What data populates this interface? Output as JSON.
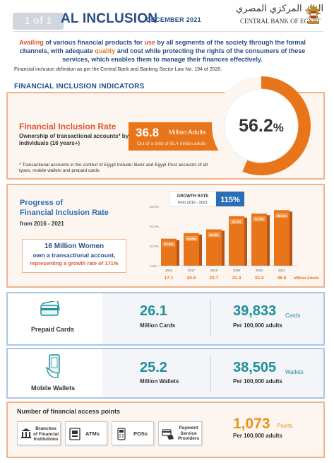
{
  "header": {
    "page_badge": "1 of 1",
    "title": "AL INCLUSION",
    "date": "DECEMBER 2021",
    "cbe_arabic": "البنك المركزي المصري",
    "cbe_english": "CENTRAL BANK OF EGYPT",
    "seal_icon": "eagle-seal-icon"
  },
  "definition": {
    "part1": "Availing",
    "part2": " of various financial products for ",
    "part3": "use",
    "part4": " by all segments of the society through the formal channels, with adequate ",
    "part5": "quality",
    "part6": " and cost while protecting the rights of the consumers of these services, which enables them to manage their finances effectively.",
    "note": "Financial inclusion definition as per the Central Bank and Banking Sector Law No. 194 of 2020."
  },
  "section_title": "FINANCIAL INCLUSION INDICATORS",
  "inclusion_rate": {
    "title": "Financial Inclusion Rate",
    "subtitle": "Ownership of transactional accounts* by individuals (16 years+)",
    "adults_value": "36.8",
    "adults_unit": "Million Adults",
    "adults_total": "Out of a total of 65.4 million adults",
    "footnote": "* Transactional accounts in the context of Egypt include: Bank and Egypt Post accounts of all types, mobile wallets and prepaid cards",
    "rate_value": "56.2",
    "rate_unit": "%",
    "rate_fraction": 0.562,
    "accent_color": "#e8751a"
  },
  "progress": {
    "title_line1": "Progress of",
    "title_line2": "Financial Inclusion Rate",
    "range": "from 2016 - 2021",
    "women_l1": "16 Million Women",
    "women_l2": "own a transactional account,",
    "women_l3": "representing a growth rate of 171%"
  },
  "chart_data": {
    "type": "bar",
    "growth_label": "GROWTH RATE",
    "growth_range": "from 2016 - 2021",
    "growth_value": "115%",
    "categories": [
      "2016",
      "2017",
      "2018",
      "2019",
      "2020",
      "2021"
    ],
    "values": [
      27.4,
      33.0,
      36.8,
      50.1,
      52.7,
      56.2
    ],
    "value_labels": [
      "27.4%",
      "33.0%",
      "36.8%",
      "50.1%",
      "52.7%",
      "56.2%"
    ],
    "adults": [
      "17.1",
      "20.5",
      "23.7",
      "31.3",
      "33.4",
      "36.8"
    ],
    "adults_unit": "Million Adults",
    "y_ticks": [
      "60.0%",
      "40.0%",
      "20.0%",
      "0.0%"
    ],
    "ylim": [
      0,
      60
    ]
  },
  "prepaid_cards": {
    "icon": "credit-card-icon",
    "label": "Prepaid Cards",
    "value": "26.1",
    "value_unit": "Million Cards",
    "per_value": "39,833",
    "per_unit": "Cards",
    "per_label": "Per 100,000 adults"
  },
  "mobile_wallets": {
    "icon": "mobile-wallet-icon",
    "label": "Mobile Wallets",
    "value": "25.2",
    "value_unit": "Million Wallets",
    "per_value": "38,505",
    "per_unit": "Wallets",
    "per_label": "Per 100,000 adults"
  },
  "access_points": {
    "title": "Number of financial access points",
    "items": [
      {
        "icon": "bank-building-icon",
        "label_l1": "Branches",
        "label_l2": "of Financial",
        "label_l3": "Institutions"
      },
      {
        "icon": "atm-icon",
        "label": "ATMs"
      },
      {
        "icon": "pos-terminal-icon",
        "label": "POSs"
      },
      {
        "icon": "payment-service-icon",
        "label_l1": "Payment",
        "label_l2": "Service",
        "label_l3": "Providers"
      }
    ],
    "value": "1,073",
    "unit": "Points",
    "per_label": "Per 100,000 adults"
  }
}
